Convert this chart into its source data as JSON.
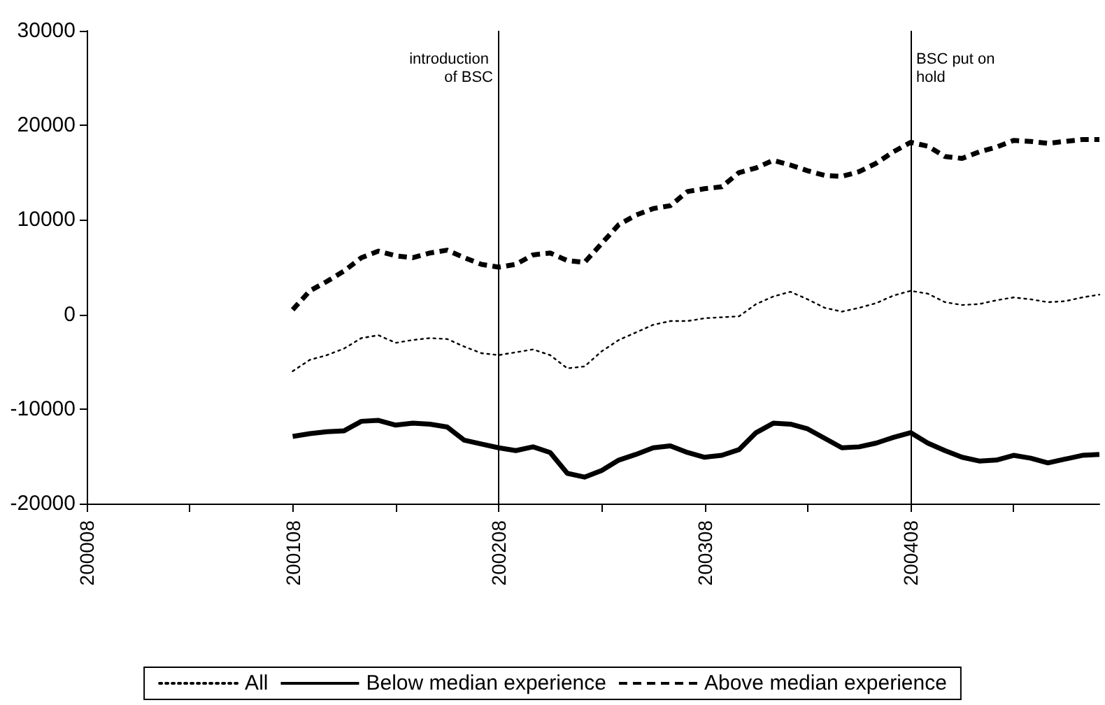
{
  "chart_data": {
    "type": "line",
    "categories": [
      "200008",
      null,
      null,
      null,
      null,
      null,
      null,
      null,
      null,
      null,
      null,
      null,
      "200108",
      null,
      null,
      null,
      null,
      null,
      null,
      null,
      null,
      null,
      null,
      null,
      "200208",
      null,
      null,
      null,
      null,
      null,
      null,
      null,
      null,
      null,
      null,
      null,
      "200308",
      null,
      null,
      null,
      null,
      null,
      null,
      null,
      null,
      null,
      null,
      null,
      "200408",
      null,
      null,
      null,
      null,
      null,
      null,
      null,
      null,
      null,
      null,
      null
    ],
    "series": [
      {
        "name": "All",
        "color": "#000000",
        "line_style": "dotted",
        "values": [
          null,
          null,
          null,
          null,
          null,
          null,
          null,
          null,
          null,
          null,
          null,
          null,
          -6000,
          -4800,
          -4300,
          -3600,
          -2500,
          -2200,
          -3000,
          -2700,
          -2500,
          -2600,
          -3400,
          -4100,
          -4300,
          -4000,
          -3700,
          -4300,
          -5700,
          -5500,
          -3900,
          -2700,
          -1900,
          -1100,
          -700,
          -700,
          -400,
          -300,
          -200,
          1100,
          1900,
          2400,
          1600,
          700,
          300,
          700,
          1200,
          2000,
          2500,
          2200,
          1300,
          1000,
          1100,
          1500,
          1800,
          1600,
          1300,
          1400,
          1800,
          2100
        ]
      },
      {
        "name": "Below median experience",
        "color": "#000000",
        "line_style": "solid",
        "values": [
          null,
          null,
          null,
          null,
          null,
          null,
          null,
          null,
          null,
          null,
          null,
          null,
          -12900,
          -12600,
          -12400,
          -12300,
          -11300,
          -11200,
          -11700,
          -11500,
          -11600,
          -11900,
          -13300,
          -13700,
          -14100,
          -14400,
          -14000,
          -14600,
          -16800,
          -17200,
          -16500,
          -15400,
          -14800,
          -14100,
          -13900,
          -14600,
          -15100,
          -14900,
          -14300,
          -12500,
          -11500,
          -11600,
          -12100,
          -13100,
          -14100,
          -14000,
          -13600,
          -13000,
          -12500,
          -13600,
          -14400,
          -15100,
          -15500,
          -15400,
          -14900,
          -15200,
          -15700,
          -15300,
          -14900,
          -14800
        ]
      },
      {
        "name": "Above median experience",
        "color": "#000000",
        "line_style": "dashed",
        "values": [
          null,
          null,
          null,
          null,
          null,
          null,
          null,
          null,
          null,
          null,
          null,
          null,
          500,
          2500,
          3500,
          4600,
          6000,
          6700,
          6200,
          6000,
          6500,
          6800,
          6000,
          5300,
          5000,
          5300,
          6300,
          6500,
          5700,
          5500,
          7500,
          9500,
          10500,
          11200,
          11500,
          13000,
          13300,
          13500,
          15000,
          15500,
          16300,
          15800,
          15200,
          14700,
          14600,
          15100,
          16000,
          17200,
          18200,
          17800,
          16700,
          16500,
          17200,
          17700,
          18400,
          18300,
          18100,
          18300,
          18500,
          18500
        ]
      }
    ],
    "ylim": [
      -20000,
      30000
    ],
    "yticks": [
      -20000,
      -10000,
      0,
      10000,
      20000,
      30000
    ],
    "grid": false,
    "legend": "bottom",
    "marker": "none",
    "ref_lines": [
      {
        "axis": "x",
        "value": "200208",
        "label": "introduction of BSC"
      },
      {
        "axis": "x",
        "value": "200408",
        "label": "BSC put on hold"
      }
    ]
  }
}
